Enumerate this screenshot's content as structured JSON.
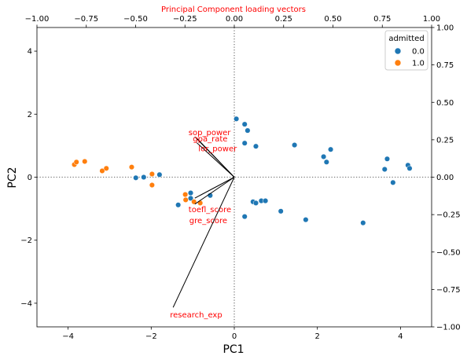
{
  "chart_data": {
    "type": "scatter",
    "title": "Principal Component loading vectors",
    "xlabel": "PC1",
    "ylabel": "PC2",
    "xlim": [
      -4.75,
      4.75
    ],
    "ylim": [
      -4.75,
      4.75
    ],
    "x_ticks": [
      -4,
      -2,
      0,
      2,
      4
    ],
    "y_ticks": [
      -4,
      -2,
      0,
      2,
      4
    ],
    "top_axis": {
      "lim": [
        -1.0,
        1.0
      ],
      "ticks": [
        -1.0,
        -0.75,
        -0.5,
        -0.25,
        0.0,
        0.25,
        0.5,
        0.75,
        1.0
      ],
      "tick_labels": [
        "−1.00",
        "−0.75",
        "−0.50",
        "−0.25",
        "0.00",
        "0.25",
        "0.50",
        "0.75",
        "1.00"
      ]
    },
    "right_axis": {
      "lim": [
        -1.0,
        1.0
      ],
      "ticks": [
        -1.0,
        -0.75,
        -0.5,
        -0.25,
        0.0,
        0.25,
        0.5,
        0.75,
        1.0
      ],
      "tick_labels": [
        "−1.00",
        "−0.75",
        "−0.50",
        "−0.25",
        "0.00",
        "0.25",
        "0.50",
        "0.75",
        "1.00"
      ]
    },
    "grid": false,
    "reference_lines": {
      "x": 0,
      "y": 0,
      "style": "dotted"
    },
    "legend": {
      "title": "admitted",
      "position": "top-right",
      "entries": [
        {
          "label": "0.0",
          "color": "#1f77b4"
        },
        {
          "label": "1.0",
          "color": "#ff7f0e"
        }
      ]
    },
    "series": [
      {
        "name": "0.0",
        "color": "#1f77b4",
        "points": [
          [
            0.05,
            1.85
          ],
          [
            0.25,
            1.68
          ],
          [
            0.32,
            1.48
          ],
          [
            0.25,
            1.08
          ],
          [
            0.52,
            0.98
          ],
          [
            1.45,
            1.02
          ],
          [
            2.15,
            0.65
          ],
          [
            2.22,
            0.48
          ],
          [
            2.32,
            0.88
          ],
          [
            3.62,
            0.25
          ],
          [
            3.68,
            0.58
          ],
          [
            3.82,
            -0.17
          ],
          [
            4.18,
            0.38
          ],
          [
            4.22,
            0.28
          ],
          [
            -2.37,
            -0.02
          ],
          [
            -2.18,
            0.0
          ],
          [
            -1.8,
            0.08
          ],
          [
            -1.05,
            -0.5
          ],
          [
            -1.05,
            -0.67
          ],
          [
            -1.35,
            -0.88
          ],
          [
            -0.58,
            -0.58
          ],
          [
            0.45,
            -0.78
          ],
          [
            0.52,
            -0.82
          ],
          [
            0.65,
            -0.75
          ],
          [
            0.75,
            -0.75
          ],
          [
            1.12,
            -1.08
          ],
          [
            1.72,
            -1.35
          ],
          [
            3.1,
            -1.45
          ],
          [
            0.25,
            -1.25
          ]
        ]
      },
      {
        "name": "1.0",
        "color": "#ff7f0e",
        "points": [
          [
            -3.85,
            0.4
          ],
          [
            -3.8,
            0.48
          ],
          [
            -3.6,
            0.5
          ],
          [
            -3.18,
            0.2
          ],
          [
            -3.08,
            0.28
          ],
          [
            -2.47,
            0.32
          ],
          [
            -1.98,
            0.1
          ],
          [
            -1.98,
            -0.25
          ],
          [
            -1.18,
            -0.55
          ],
          [
            -1.17,
            -0.72
          ],
          [
            -0.97,
            -0.78
          ],
          [
            -0.82,
            -0.82
          ]
        ]
      }
    ],
    "loading_vectors": {
      "color": "#ff0000",
      "vectors": [
        {
          "label": "sop_power",
          "x": -0.2,
          "y": 0.27
        },
        {
          "label": "gpa_rate",
          "x": -0.19,
          "y": 0.26
        },
        {
          "label": "lor_power",
          "x": -0.19,
          "y": 0.23
        },
        {
          "label": "toefl_score",
          "x": -0.2,
          "y": -0.14
        },
        {
          "label": "gre_score",
          "x": -0.2,
          "y": -0.18
        },
        {
          "label": "research_exp",
          "x": -0.31,
          "y": -0.87
        }
      ]
    }
  }
}
